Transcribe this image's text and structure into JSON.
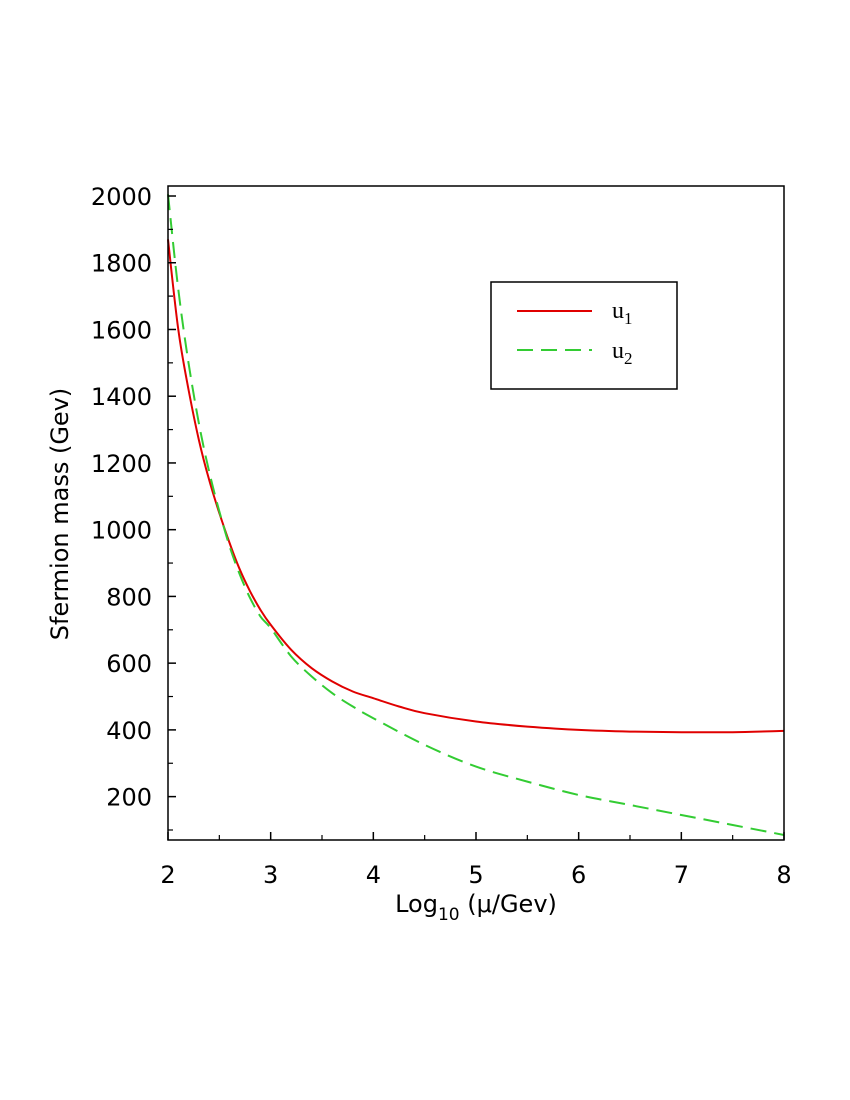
{
  "chart_data": {
    "type": "line",
    "xlabel": {
      "main": "Log",
      "sub": "10",
      "rest": " (μ/Gev)"
    },
    "ylabel": "Sfermion mass (Gev)",
    "xlim": [
      2,
      8
    ],
    "ylim": [
      70,
      2030
    ],
    "xticks": [
      2,
      3,
      4,
      5,
      6,
      7,
      8
    ],
    "yticks": [
      200,
      400,
      600,
      800,
      1000,
      1200,
      1400,
      1600,
      1800,
      2000
    ],
    "grid": false,
    "legend_position": "top-right",
    "series": [
      {
        "name": "u",
        "name_sub": "1",
        "color": "#e00000",
        "dash": "solid",
        "x": [
          2.0,
          2.1,
          2.2,
          2.3,
          2.4,
          2.5,
          2.6,
          2.7,
          2.8,
          2.9,
          3.0,
          3.2,
          3.4,
          3.6,
          3.8,
          4.0,
          4.25,
          4.5,
          5.0,
          5.5,
          6.0,
          6.5,
          7.0,
          7.5,
          8.0
        ],
        "y": [
          1870,
          1600,
          1420,
          1270,
          1150,
          1050,
          960,
          880,
          815,
          760,
          715,
          640,
          585,
          545,
          515,
          495,
          470,
          450,
          425,
          410,
          400,
          395,
          393,
          393,
          397
        ]
      },
      {
        "name": "u",
        "name_sub": "2",
        "color": "#33cc33",
        "dash": "dashed",
        "x": [
          2.0,
          2.1,
          2.2,
          2.3,
          2.4,
          2.5,
          2.6,
          2.7,
          2.8,
          2.9,
          3.0,
          3.2,
          3.4,
          3.6,
          3.8,
          4.0,
          4.5,
          5.0,
          5.5,
          6.0,
          6.5,
          7.0,
          7.5,
          8.0
        ],
        "y": [
          2005,
          1720,
          1500,
          1320,
          1175,
          1055,
          950,
          865,
          795,
          740,
          705,
          620,
          560,
          510,
          470,
          435,
          355,
          290,
          245,
          205,
          175,
          145,
          115,
          85
        ]
      }
    ]
  }
}
